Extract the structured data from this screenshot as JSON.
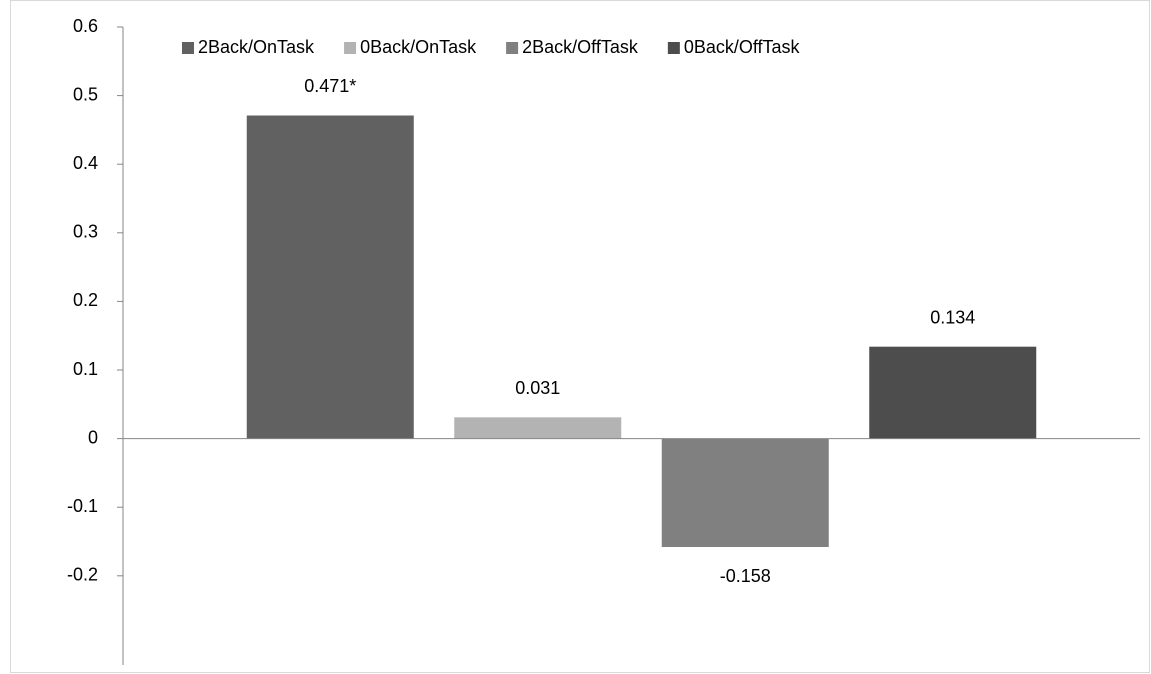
{
  "chart_data": {
    "type": "bar",
    "categories": [
      null
    ],
    "series": [
      {
        "name": "2Back/OnTask",
        "color": "#616161",
        "values": [
          0.471
        ],
        "value_labels": [
          "0.471*"
        ]
      },
      {
        "name": "0Back/OnTask",
        "color": "#b3b3b3",
        "values": [
          0.031
        ]
      },
      {
        "name": "2Back/OffTask",
        "color": "#808080",
        "values": [
          -0.158
        ]
      },
      {
        "name": "0Back/OffTask",
        "color": "#4d4d4d",
        "values": [
          0.134
        ]
      }
    ],
    "ylim": [
      -0.33,
      0.6
    ],
    "yticks": [
      -0.2,
      -0.1,
      0,
      0.1,
      0.2,
      0.3,
      0.4,
      0.5,
      0.6
    ],
    "grid": false,
    "legend": "top"
  }
}
